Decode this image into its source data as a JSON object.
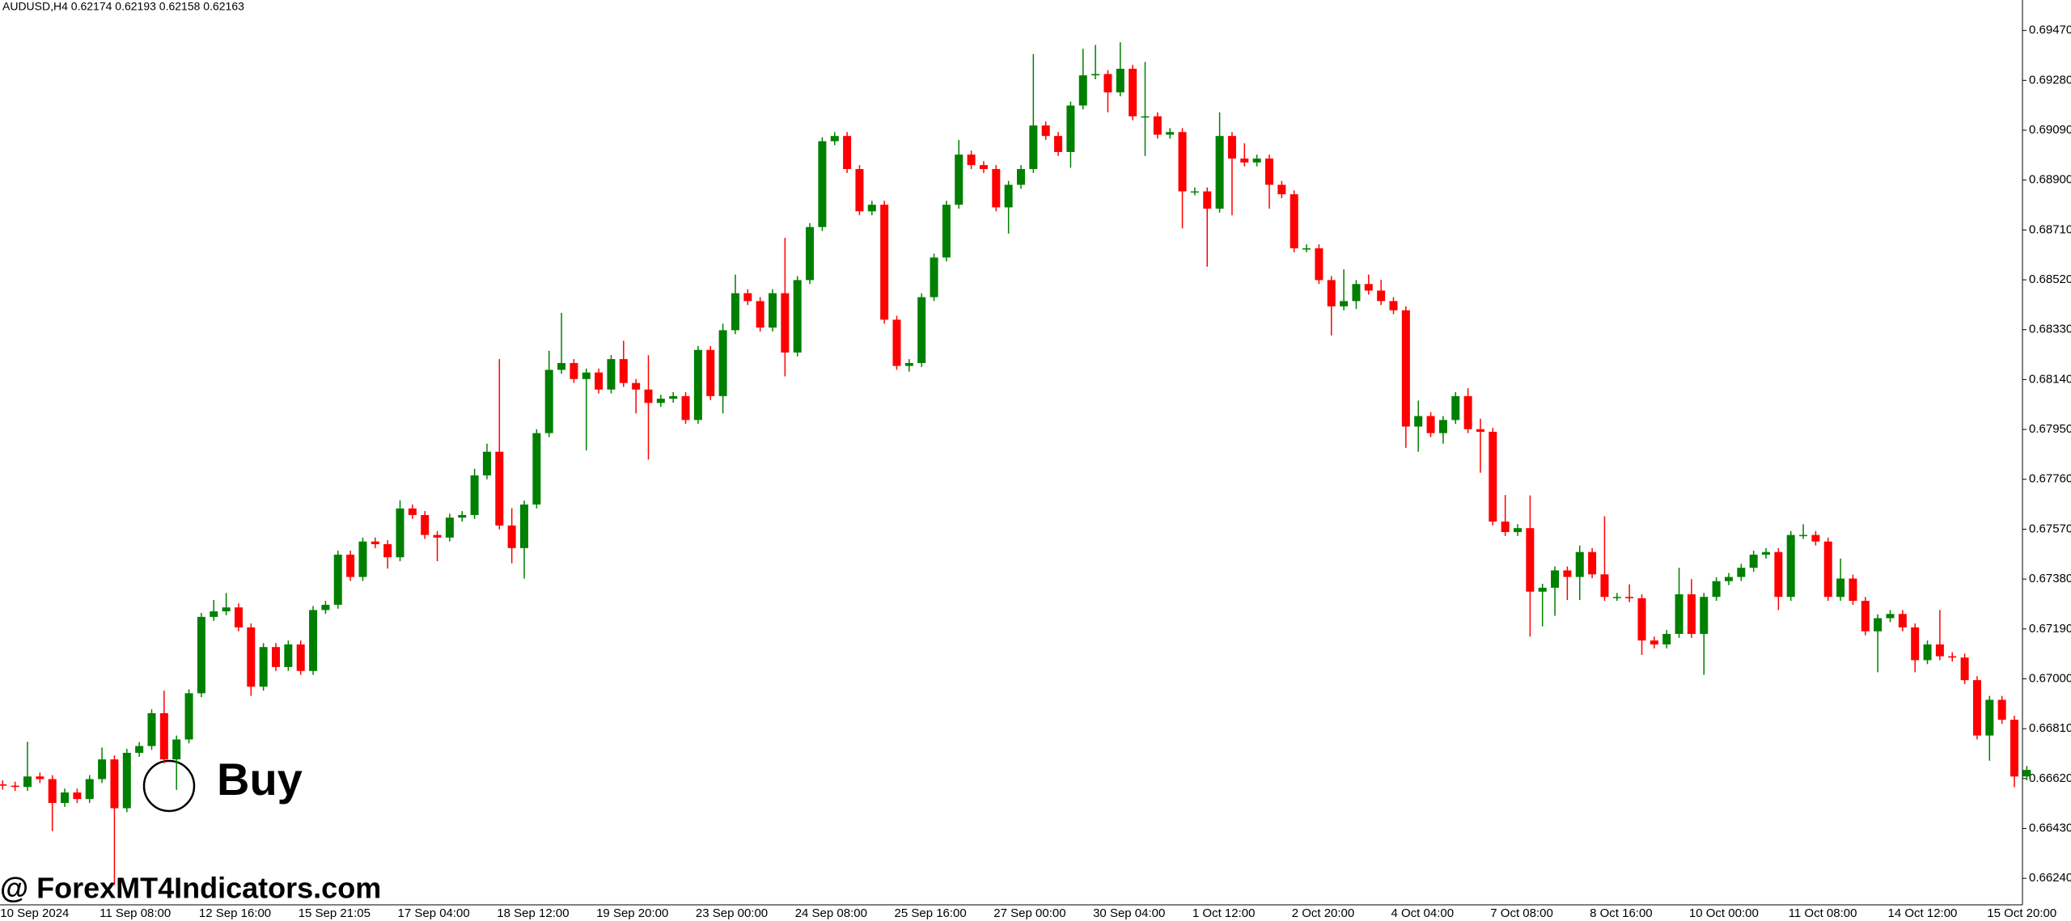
{
  "chart_data": {
    "type": "candlestick",
    "title": "AUDUSD,H4  0.62174 0.62193 0.62158 0.62163",
    "annotation": "Buy",
    "watermark": "@ ForexMT4Indicators.com",
    "up_color": "#008000",
    "down_color": "#ff0000",
    "grid": false,
    "ylim": [
      0.66139,
      0.69586
    ],
    "yticks": [
      {
        "value": 0.6624,
        "label": "0.66240"
      },
      {
        "value": 0.6643,
        "label": "0.66430"
      },
      {
        "value": 0.6662,
        "label": "0.66620"
      },
      {
        "value": 0.6681,
        "label": "0.66810"
      },
      {
        "value": 0.67,
        "label": "0.67000"
      },
      {
        "value": 0.6719,
        "label": "0.67190"
      },
      {
        "value": 0.6738,
        "label": "0.67380"
      },
      {
        "value": 0.6757,
        "label": "0.67570"
      },
      {
        "value": 0.6776,
        "label": "0.67760"
      },
      {
        "value": 0.6795,
        "label": "0.67950"
      },
      {
        "value": 0.6814,
        "label": "0.68140"
      },
      {
        "value": 0.6833,
        "label": "0.68330"
      },
      {
        "value": 0.6852,
        "label": "0.68520"
      },
      {
        "value": 0.6871,
        "label": "0.68710"
      },
      {
        "value": 0.689,
        "label": "0.68900"
      },
      {
        "value": 0.6909,
        "label": "0.69090"
      },
      {
        "value": 0.6928,
        "label": "0.69280"
      },
      {
        "value": 0.6947,
        "label": "0.69470"
      }
    ],
    "categories": [
      "10 Sep 2024",
      null,
      null,
      null,
      null,
      null,
      null,
      null,
      "11 Sep 08:00",
      null,
      null,
      null,
      null,
      null,
      null,
      null,
      "12 Sep 16:00",
      null,
      null,
      null,
      null,
      null,
      null,
      null,
      "15 Sep 21:05",
      null,
      null,
      null,
      null,
      null,
      null,
      null,
      "17 Sep 04:00",
      null,
      null,
      null,
      null,
      null,
      null,
      null,
      "18 Sep 12:00",
      null,
      null,
      null,
      null,
      null,
      null,
      null,
      "19 Sep 20:00",
      null,
      null,
      null,
      null,
      null,
      null,
      null,
      "23 Sep 00:00",
      null,
      null,
      null,
      null,
      null,
      null,
      null,
      "24 Sep 08:00",
      null,
      null,
      null,
      null,
      null,
      null,
      null,
      "25 Sep 16:00",
      null,
      null,
      null,
      null,
      null,
      null,
      null,
      "27 Sep 00:00",
      null,
      null,
      null,
      null,
      null,
      null,
      null,
      "30 Sep 04:00",
      null,
      null,
      null,
      null,
      null,
      null,
      null,
      "1 Oct 12:00",
      null,
      null,
      null,
      null,
      null,
      null,
      null,
      "2 Oct 20:00",
      null,
      null,
      null,
      null,
      null,
      null,
      null,
      "4 Oct 04:00",
      null,
      null,
      null,
      null,
      null,
      null,
      null,
      "7 Oct 08:00",
      null,
      null,
      null,
      null,
      null,
      null,
      null,
      "8 Oct 16:00",
      null,
      null,
      null,
      null,
      null,
      null,
      null,
      "10 Oct 00:00",
      null,
      null,
      null,
      null,
      null,
      null,
      null,
      "11 Oct 08:00",
      null,
      null,
      null,
      null,
      null,
      null,
      null,
      "14 Oct 12:00",
      null,
      null,
      null,
      null,
      null,
      null,
      null,
      "15 Oct 20:00",
      null,
      null,
      null
    ],
    "open": [
      0.66598,
      0.66593,
      0.66588,
      0.66628,
      0.66618,
      0.66527,
      0.66567,
      0.66542,
      0.66618,
      0.66693,
      0.66507,
      0.66718,
      0.66744,
      0.66869,
      0.66693,
      0.66769,
      0.66945,
      0.67236,
      0.67257,
      0.67272,
      0.67196,
      0.6697,
      0.67121,
      0.67045,
      0.67131,
      0.6703,
      0.67262,
      0.67282,
      0.67473,
      0.67388,
      0.67523,
      0.67513,
      0.67463,
      0.67649,
      0.67624,
      0.67548,
      0.67538,
      0.67614,
      0.67624,
      0.67775,
      0.67865,
      0.67584,
      0.67498,
      0.67664,
      0.67936,
      0.68177,
      0.68203,
      0.68142,
      0.68167,
      0.68102,
      0.68218,
      0.68127,
      0.68102,
      0.68051,
      0.68067,
      0.68077,
      0.67986,
      0.68253,
      0.68077,
      0.68328,
      0.68469,
      0.68439,
      0.68338,
      0.68469,
      0.68243,
      0.68519,
      0.68721,
      0.69048,
      0.69068,
      0.68942,
      0.68781,
      0.68806,
      0.68368,
      0.68192,
      0.68203,
      0.68454,
      0.68605,
      0.68806,
      0.68997,
      0.68957,
      0.68942,
      0.68796,
      0.68882,
      0.68942,
      0.69108,
      0.69068,
      0.69007,
      0.69184,
      0.69299,
      0.69304,
      0.69234,
      0.69324,
      0.69143,
      0.69143,
      0.69073,
      0.69083,
      0.68857,
      0.68857,
      0.68791,
      0.69068,
      0.68982,
      0.68967,
      0.68982,
      0.68882,
      0.68846,
      0.6864,
      0.6864,
      0.68519,
      0.68419,
      0.68439,
      0.68504,
      0.68479,
      0.68439,
      0.68404,
      0.67961,
      0.68001,
      0.67936,
      0.67986,
      0.68077,
      0.67951,
      0.67941,
      0.67599,
      0.67559,
      0.67574,
      0.67332,
      0.67347,
      0.67413,
      0.67388,
      0.67483,
      0.67398,
      0.67312,
      0.67312,
      0.67307,
      0.67146,
      0.67131,
      0.67171,
      0.67322,
      0.67171,
      0.67312,
      0.67372,
      0.67388,
      0.67423,
      0.67473,
      0.67483,
      0.67312,
      0.67548,
      0.67548,
      0.67523,
      0.67312,
      0.67382,
      0.67297,
      0.67181,
      0.67231,
      0.67247,
      0.67196,
      0.67071,
      0.67131,
      0.67086,
      0.67081,
      0.66995,
      0.66784,
      0.6692,
      0.66844,
      0.66628
    ],
    "high": [
      0.66613,
      0.66608,
      0.6676,
      0.66643,
      0.66633,
      0.66582,
      0.66582,
      0.66633,
      0.66738,
      0.66708,
      0.66733,
      0.66759,
      0.66884,
      0.66955,
      0.66784,
      0.6696,
      0.67251,
      0.673,
      0.67327,
      0.67287,
      0.67211,
      0.67136,
      0.67136,
      0.67146,
      0.67146,
      0.67277,
      0.67297,
      0.67488,
      0.67488,
      0.67538,
      0.67538,
      0.67528,
      0.6768,
      0.67664,
      0.67639,
      0.67563,
      0.67629,
      0.67639,
      0.678,
      0.67896,
      0.68218,
      0.6765,
      0.67679,
      0.67951,
      0.6825,
      0.68394,
      0.68218,
      0.68182,
      0.68182,
      0.68233,
      0.68288,
      0.68142,
      0.68233,
      0.68082,
      0.68092,
      0.68092,
      0.68268,
      0.68268,
      0.68353,
      0.6854,
      0.68484,
      0.68454,
      0.68484,
      0.6868,
      0.68534,
      0.68736,
      0.69063,
      0.69083,
      0.69083,
      0.68957,
      0.68821,
      0.68821,
      0.68383,
      0.68218,
      0.68469,
      0.6862,
      0.68821,
      0.69053,
      0.69012,
      0.68972,
      0.68957,
      0.68897,
      0.68957,
      0.6938,
      0.69123,
      0.69083,
      0.69199,
      0.694,
      0.69415,
      0.69319,
      0.69425,
      0.69339,
      0.6935,
      0.69158,
      0.69098,
      0.69098,
      0.68872,
      0.68872,
      0.69158,
      0.69083,
      0.6904,
      0.68997,
      0.68997,
      0.68897,
      0.68861,
      0.68655,
      0.68655,
      0.68534,
      0.6856,
      0.68519,
      0.6854,
      0.6852,
      0.68454,
      0.68419,
      0.6806,
      0.68016,
      0.68001,
      0.68092,
      0.68107,
      0.67991,
      0.67956,
      0.677,
      0.67589,
      0.67699,
      0.67362,
      0.67428,
      0.67428,
      0.67508,
      0.67498,
      0.67619,
      0.67327,
      0.6736,
      0.67322,
      0.67161,
      0.67186,
      0.67423,
      0.6738,
      0.67327,
      0.67387,
      0.67403,
      0.67438,
      0.67488,
      0.67498,
      0.67498,
      0.67563,
      0.67589,
      0.67563,
      0.67538,
      0.67458,
      0.67397,
      0.67312,
      0.67246,
      0.67262,
      0.67262,
      0.67211,
      0.67146,
      0.67262,
      0.67101,
      0.67096,
      0.6701,
      0.66935,
      0.66935,
      0.66859,
      0.66668
    ],
    "low": [
      0.66578,
      0.66573,
      0.66573,
      0.66603,
      0.6642,
      0.66512,
      0.66527,
      0.66527,
      0.66603,
      0.66215,
      0.66492,
      0.66703,
      0.66729,
      0.66678,
      0.66577,
      0.66754,
      0.6693,
      0.67221,
      0.67242,
      0.67181,
      0.66935,
      0.66955,
      0.6703,
      0.6703,
      0.67015,
      0.67015,
      0.67247,
      0.67267,
      0.67373,
      0.67373,
      0.67498,
      0.6742,
      0.67448,
      0.67609,
      0.67533,
      0.67448,
      0.67523,
      0.67599,
      0.67609,
      0.6776,
      0.67569,
      0.6744,
      0.67382,
      0.67649,
      0.67921,
      0.68162,
      0.68127,
      0.6787,
      0.68087,
      0.68087,
      0.68112,
      0.68011,
      0.67835,
      0.68036,
      0.68052,
      0.67971,
      0.67971,
      0.68062,
      0.68011,
      0.68313,
      0.68424,
      0.68323,
      0.68323,
      0.68152,
      0.68228,
      0.68504,
      0.68706,
      0.69033,
      0.68927,
      0.68766,
      0.68766,
      0.68353,
      0.68177,
      0.6817,
      0.68188,
      0.68439,
      0.6859,
      0.68791,
      0.68942,
      0.68927,
      0.68781,
      0.68696,
      0.68867,
      0.68927,
      0.69053,
      0.68992,
      0.68947,
      0.69169,
      0.69284,
      0.69158,
      0.69219,
      0.69128,
      0.68992,
      0.69058,
      0.69058,
      0.68716,
      0.68842,
      0.6857,
      0.68776,
      0.68766,
      0.68952,
      0.68952,
      0.68791,
      0.68831,
      0.68625,
      0.68625,
      0.68504,
      0.68308,
      0.68404,
      0.68409,
      0.68464,
      0.68424,
      0.68389,
      0.6788,
      0.67865,
      0.67921,
      0.67896,
      0.67971,
      0.67936,
      0.67785,
      0.67584,
      0.67544,
      0.67544,
      0.67161,
      0.672,
      0.6724,
      0.673,
      0.673,
      0.67383,
      0.67297,
      0.67297,
      0.67292,
      0.67091,
      0.67116,
      0.67116,
      0.67156,
      0.67156,
      0.67015,
      0.67297,
      0.67357,
      0.67373,
      0.67408,
      0.67458,
      0.67262,
      0.67297,
      0.67533,
      0.67508,
      0.67297,
      0.67297,
      0.67282,
      0.67166,
      0.67025,
      0.67216,
      0.67181,
      0.67025,
      0.67056,
      0.67071,
      0.67066,
      0.6698,
      0.66769,
      0.66688,
      0.66829,
      0.66587,
      0.66613
    ],
    "close": [
      0.66593,
      0.66588,
      0.66628,
      0.66618,
      0.66527,
      0.66567,
      0.66542,
      0.66618,
      0.66693,
      0.66507,
      0.66718,
      0.66744,
      0.66869,
      0.66693,
      0.66769,
      0.66945,
      0.67236,
      0.67257,
      0.67272,
      0.67196,
      0.6697,
      0.67121,
      0.67045,
      0.67131,
      0.6703,
      0.67262,
      0.67282,
      0.67473,
      0.67388,
      0.67523,
      0.67513,
      0.67463,
      0.67649,
      0.67624,
      0.67548,
      0.67538,
      0.67614,
      0.67624,
      0.67775,
      0.67865,
      0.67584,
      0.67498,
      0.67664,
      0.67936,
      0.68177,
      0.68203,
      0.68142,
      0.68167,
      0.68102,
      0.68218,
      0.68127,
      0.68102,
      0.68051,
      0.68067,
      0.68077,
      0.67986,
      0.68253,
      0.68077,
      0.68328,
      0.68469,
      0.68439,
      0.68338,
      0.68469,
      0.68243,
      0.68519,
      0.68721,
      0.69048,
      0.69068,
      0.68942,
      0.68781,
      0.68806,
      0.68368,
      0.68192,
      0.68203,
      0.68454,
      0.68605,
      0.68806,
      0.68997,
      0.68957,
      0.68942,
      0.68796,
      0.68882,
      0.68942,
      0.69108,
      0.69068,
      0.69007,
      0.69184,
      0.69299,
      0.69304,
      0.69234,
      0.69324,
      0.69143,
      0.69143,
      0.69073,
      0.69083,
      0.68857,
      0.68857,
      0.68791,
      0.69068,
      0.68982,
      0.68967,
      0.68982,
      0.68882,
      0.68846,
      0.6864,
      0.6864,
      0.68519,
      0.68419,
      0.68439,
      0.68504,
      0.68479,
      0.68439,
      0.68404,
      0.67961,
      0.68001,
      0.67936,
      0.67986,
      0.68077,
      0.67951,
      0.67941,
      0.67599,
      0.67559,
      0.67574,
      0.67332,
      0.67347,
      0.67413,
      0.67388,
      0.67483,
      0.67398,
      0.67312,
      0.67312,
      0.67307,
      0.67146,
      0.67131,
      0.67171,
      0.67322,
      0.67171,
      0.67312,
      0.67372,
      0.67388,
      0.67423,
      0.67473,
      0.67483,
      0.67312,
      0.67548,
      0.67548,
      0.67523,
      0.67312,
      0.67382,
      0.67297,
      0.67181,
      0.67231,
      0.67247,
      0.67196,
      0.67071,
      0.67131,
      0.67086,
      0.67081,
      0.66995,
      0.66784,
      0.6692,
      0.66844,
      0.66628,
      0.66653
    ]
  }
}
